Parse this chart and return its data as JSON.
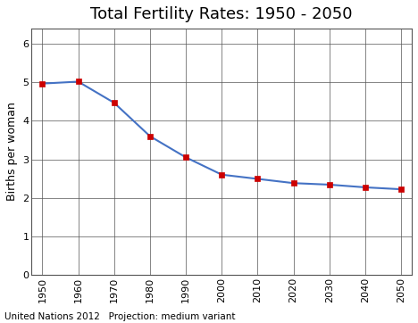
{
  "title": "Total Fertility Rates: 1950 - 2050",
  "ylabel": "Births per woman",
  "footnote": "United Nations 2012   Projection: medium variant",
  "x": [
    1950,
    1960,
    1970,
    1980,
    1990,
    2000,
    2010,
    2020,
    2030,
    2040,
    2050
  ],
  "y": [
    4.97,
    5.02,
    4.47,
    3.6,
    3.05,
    2.6,
    2.49,
    2.38,
    2.34,
    2.27,
    2.22
  ],
  "line_color": "#4472C4",
  "marker_color": "#CC0000",
  "marker_style": "s",
  "marker_size": 4,
  "line_width": 1.5,
  "xlim": [
    1947,
    2053
  ],
  "ylim": [
    0,
    6.4
  ],
  "yticks": [
    0,
    1,
    2,
    3,
    4,
    5,
    6
  ],
  "xticks": [
    1950,
    1960,
    1970,
    1980,
    1990,
    2000,
    2010,
    2020,
    2030,
    2040,
    2050
  ],
  "title_fontsize": 13,
  "ylabel_fontsize": 9,
  "tick_fontsize": 8,
  "footnote_fontsize": 7.5,
  "grid_color": "#555555",
  "grid_linewidth": 0.5,
  "spine_color": "#555555",
  "background_color": "#ffffff"
}
